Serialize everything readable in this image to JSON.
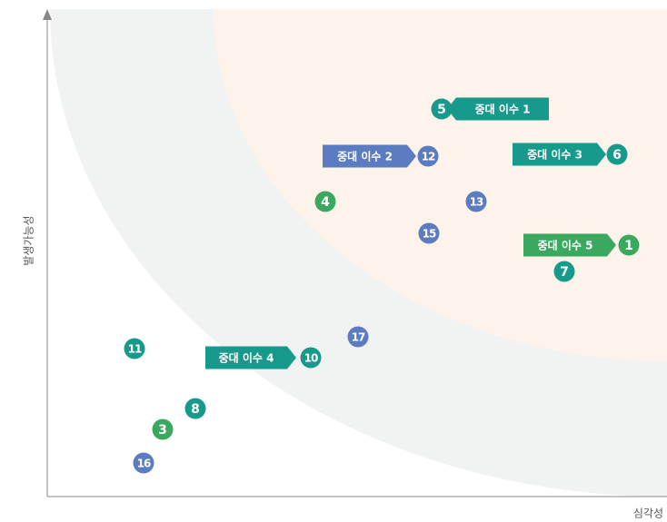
{
  "y_axis_label": "발생가능성",
  "x_axis_label": "심각성",
  "nodes": [
    {
      "label": "5",
      "color": "#17998c"
    },
    {
      "label": "12",
      "color": "#5b7cc0"
    },
    {
      "label": "6",
      "color": "#17998c"
    },
    {
      "label": "4",
      "color": "#3aa95f"
    },
    {
      "label": "13",
      "color": "#5b7cc0"
    },
    {
      "label": "15",
      "color": "#5b7cc0"
    },
    {
      "label": "1",
      "color": "#3aa95f"
    },
    {
      "label": "7",
      "color": "#17998c"
    },
    {
      "label": "17",
      "color": "#5b7cc0"
    },
    {
      "label": "11",
      "color": "#17998c"
    },
    {
      "label": "10",
      "color": "#17998c"
    },
    {
      "label": "8",
      "color": "#17998c"
    },
    {
      "label": "3",
      "color": "#3aa95f"
    },
    {
      "label": "16",
      "color": "#5b7cc0"
    }
  ],
  "callouts": [
    {
      "label": "중대 이수 1",
      "color": "#17998c"
    },
    {
      "label": "중대 이수 2",
      "color": "#5b7cc0"
    },
    {
      "label": "중대 이수 3",
      "color": "#17998c"
    },
    {
      "label": "중대 이수 5",
      "color": "#3aa95f"
    },
    {
      "label": "중대 이수 4",
      "color": "#17998c"
    }
  ]
}
